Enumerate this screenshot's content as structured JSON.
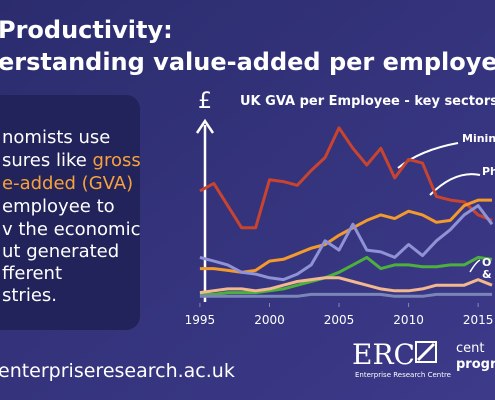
{
  "header": {
    "title": [
      "Productivity:",
      "erstanding value-added per employee"
    ]
  },
  "intro": {
    "lines": [
      [
        "nomists use"
      ],
      [
        "sures like ",
        "gross"
      ],
      [
        "e-added (GVA)"
      ],
      [
        "employee to"
      ],
      [
        "v the economic"
      ],
      [
        "ut generated"
      ],
      [
        "fferent"
      ],
      [
        "stries."
      ]
    ]
  },
  "footer": {
    "url": "enterpriseresearch.ac.uk",
    "logo": "ERC",
    "logo_sub": "Enterprise Research Centre",
    "partner": [
      "cent",
      "progre"
    ]
  },
  "chart_data": {
    "type": "line",
    "title": "UK GVA per Employee - key sectors",
    "y_label": "£",
    "x": [
      1995,
      1996,
      1997,
      1998,
      1999,
      2000,
      2001,
      2002,
      2003,
      2004,
      2005,
      2006,
      2007,
      2008,
      2009,
      2010,
      2011,
      2012,
      2013,
      2014,
      2015,
      2016
    ],
    "xlim": [
      1994,
      2016.5
    ],
    "xticks": [
      1995,
      2000,
      2005,
      2010,
      2015
    ],
    "ylim": [
      0,
      100
    ],
    "series": [
      {
        "name": "Minin",
        "color": "#c8442f",
        "values": [
          59,
          63,
          51,
          39,
          39,
          65,
          64,
          62,
          70,
          77,
          93,
          82,
          73,
          82,
          66,
          76,
          74,
          56,
          54,
          53,
          46,
          43
        ]
      },
      {
        "name": "Ph",
        "color": "#f39a2b",
        "values": [
          17,
          17,
          16,
          15,
          16,
          21,
          22,
          25,
          28,
          30,
          35,
          39,
          43,
          46,
          44,
          48,
          46,
          42,
          43,
          51,
          54,
          54
        ]
      },
      {
        "color": "#8f93d6",
        "values": [
          23,
          21,
          19,
          15,
          14,
          12,
          11,
          14,
          19,
          32,
          27,
          41,
          27,
          26,
          23,
          30,
          24,
          32,
          38,
          46,
          51,
          41
        ]
      },
      {
        "color": "#4caf3e",
        "values": [
          3,
          3,
          4,
          4,
          4,
          5,
          6,
          8,
          10,
          12,
          15,
          19,
          23,
          17,
          19,
          19,
          18,
          18,
          19,
          19,
          23,
          22
        ]
      },
      {
        "name": "O",
        "color": "#f2b98f",
        "values": [
          4,
          5,
          6,
          6,
          5,
          6,
          8,
          10,
          11,
          12,
          12,
          10,
          8,
          6,
          5,
          5,
          6,
          8,
          8,
          8,
          11,
          8
        ]
      },
      {
        "name": "&",
        "color": "#7a86b8",
        "values": [
          2,
          2,
          2,
          2,
          2,
          2,
          2,
          2,
          3,
          3,
          3,
          3,
          3,
          3,
          2,
          2,
          2,
          3,
          3,
          3,
          3,
          3
        ]
      }
    ]
  }
}
